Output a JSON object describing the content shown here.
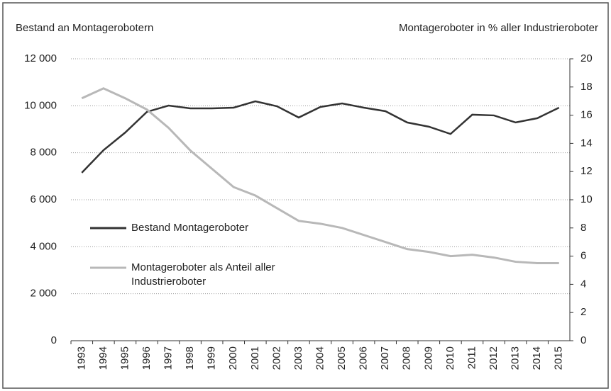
{
  "chart_data": {
    "type": "line",
    "y_axis_title": "Bestand an Montagerobotern",
    "y2_axis_title": "Montageroboter in % aller Industrieroboter",
    "categories": [
      "1993",
      "1994",
      "1995",
      "1996",
      "1997",
      "1998",
      "1999",
      "2000",
      "2001",
      "2002",
      "2003",
      "2004",
      "2005",
      "2006",
      "2007",
      "2008",
      "2009",
      "2010",
      "2011",
      "2012",
      "2013",
      "2014",
      "2015"
    ],
    "series": [
      {
        "name": "Bestand Montageroboter",
        "color": "#333333",
        "axis": "y",
        "values": [
          7150,
          8110,
          8860,
          9740,
          10010,
          9890,
          9890,
          9920,
          10190,
          9980,
          9500,
          9950,
          10100,
          9920,
          9770,
          9290,
          9110,
          8800,
          9620,
          9590,
          9290,
          9470,
          9920
        ]
      },
      {
        "name": "Montageroboter als Anteil aller Industrieroboter",
        "color": "#b8b8b8",
        "axis": "y2",
        "values": [
          17.2,
          17.9,
          17.2,
          16.4,
          15.1,
          13.5,
          12.2,
          10.9,
          10.3,
          9.4,
          8.5,
          8.3,
          8.0,
          7.5,
          7.0,
          6.5,
          6.3,
          6.0,
          6.1,
          5.9,
          5.6,
          5.5,
          5.5
        ]
      }
    ],
    "ylim": [
      0,
      12000
    ],
    "yticks": [
      {
        "value": 0,
        "label": "0"
      },
      {
        "value": 2000,
        "label": "2 000"
      },
      {
        "value": 4000,
        "label": "4 000"
      },
      {
        "value": 6000,
        "label": "6 000"
      },
      {
        "value": 8000,
        "label": "8 000"
      },
      {
        "value": 10000,
        "label": "10 000"
      },
      {
        "value": 12000,
        "label": "12 000"
      }
    ],
    "y2lim": [
      0,
      20
    ],
    "y2ticks": [
      0,
      2,
      4,
      6,
      8,
      10,
      12,
      14,
      16,
      18,
      20
    ],
    "grid": true
  }
}
